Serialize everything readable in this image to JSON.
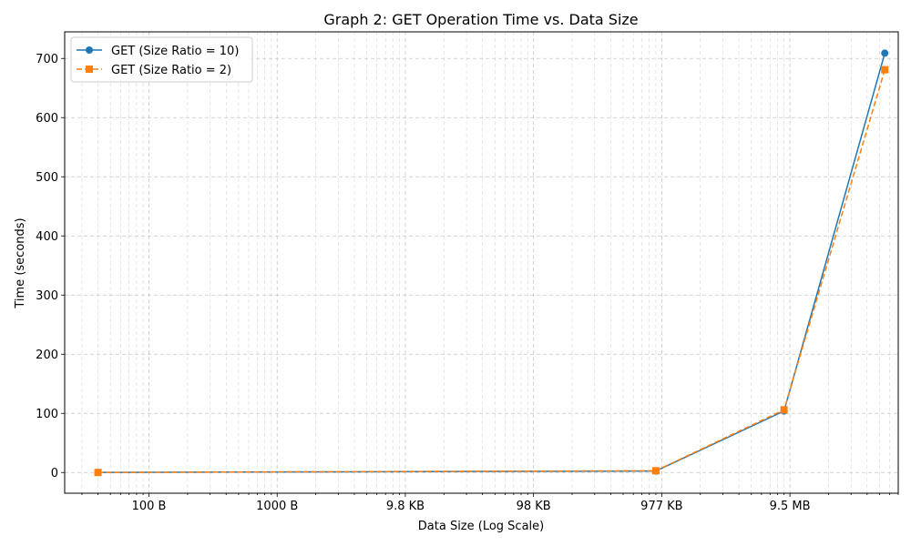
{
  "chart_data": {
    "type": "line",
    "title": "Graph 2: GET Operation Time vs. Data Size",
    "xlabel": "Data Size (Log Scale)",
    "ylabel": "Time (seconds)",
    "xscale": "log",
    "xlim_bytes": [
      22,
      70000000
    ],
    "ylim": [
      -35,
      745
    ],
    "x_ticks": [
      {
        "value": 100,
        "label": "100 B"
      },
      {
        "value": 1000,
        "label": "1000 B"
      },
      {
        "value": 10000,
        "label": "9.8 KB"
      },
      {
        "value": 100000,
        "label": "98 KB"
      },
      {
        "value": 1000000,
        "label": "977 KB"
      },
      {
        "value": 10000000,
        "label": "9.5 MB"
      }
    ],
    "y_ticks": [
      0,
      100,
      200,
      300,
      400,
      500,
      600,
      700
    ],
    "grid": true,
    "legend_position": "top-left",
    "series": [
      {
        "name": "GET (Size Ratio = 10)",
        "color": "#1f77b4",
        "line_style": "solid",
        "marker": "circle",
        "x": [
          40,
          900000,
          9000000,
          55000000
        ],
        "y": [
          0.1,
          2.5,
          104,
          709
        ]
      },
      {
        "name": "GET (Size Ratio = 2)",
        "color": "#ff7f0e",
        "line_style": "dashed",
        "marker": "square",
        "x": [
          40,
          900000,
          9000000,
          55000000
        ],
        "y": [
          0.1,
          3,
          106,
          681
        ]
      }
    ]
  }
}
